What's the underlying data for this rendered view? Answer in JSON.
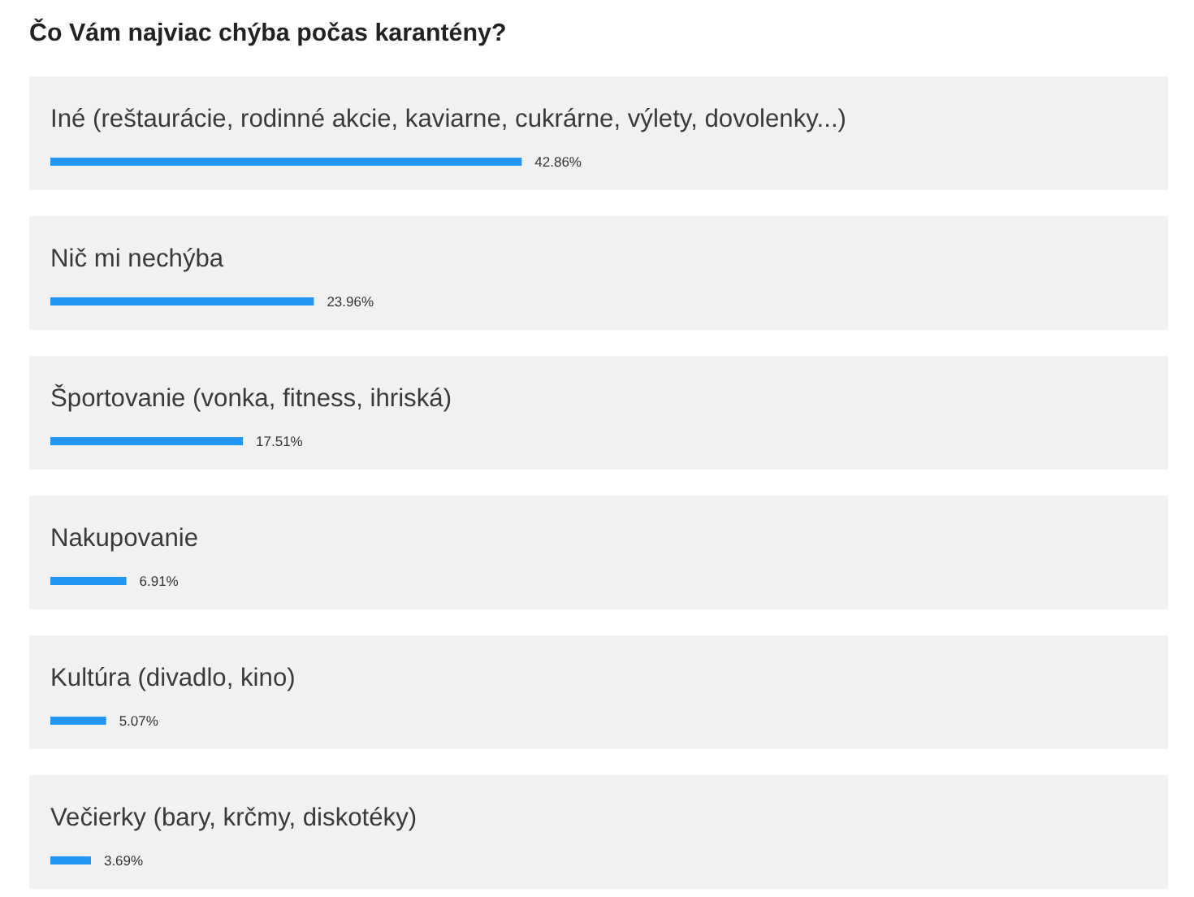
{
  "chart_data": {
    "type": "bar",
    "orientation": "horizontal",
    "title": "Čo Vám najviac chýba počas karantény?",
    "categories": [
      "Iné (reštaurácie, rodinné akcie, kaviarne, cukrárne, výlety, dovolenky...)",
      "Nič mi nechýba",
      "Športovanie (vonka, fitness, ihriská)",
      "Nakupovanie",
      "Kultúra (divadlo, kino)",
      "Večierky (bary, krčmy, diskotéky)"
    ],
    "values": [
      42.86,
      23.96,
      17.51,
      6.91,
      5.07,
      3.69
    ],
    "value_labels": [
      "42.86%",
      "23.96%",
      "17.51%",
      "6.91%",
      "5.07%",
      "3.69%"
    ],
    "color": "#2196f3"
  }
}
